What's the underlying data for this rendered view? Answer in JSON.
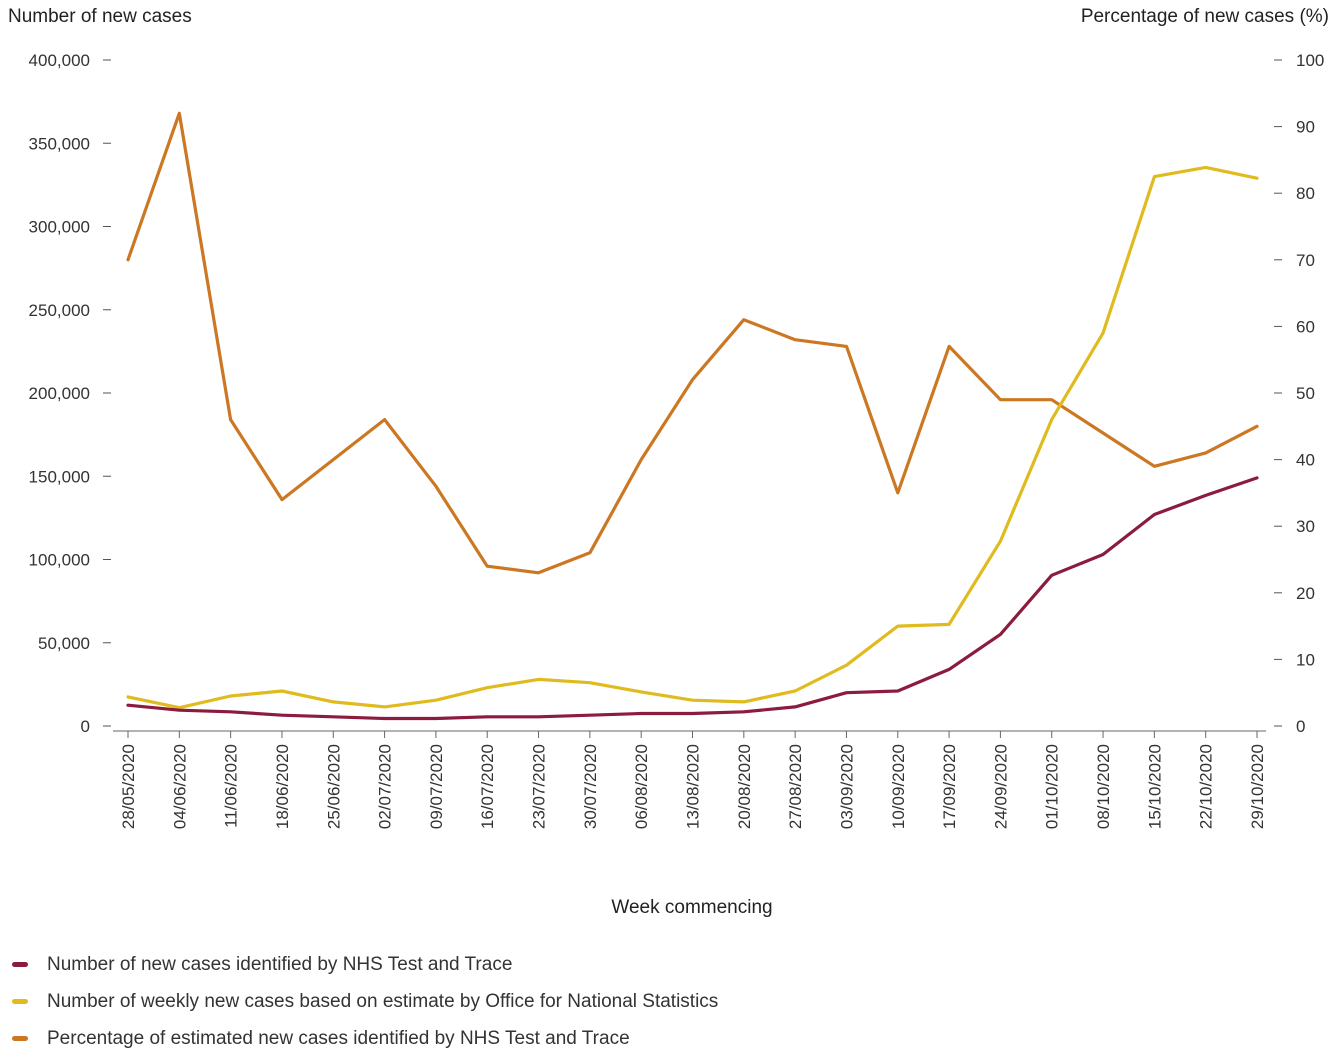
{
  "chart_data": {
    "type": "line",
    "title": "",
    "xlabel": "Week commencing",
    "ylabel_left": "Number of new cases",
    "ylabel_right": "Percentage of new cases (%)",
    "ylim_left": [
      0,
      400000
    ],
    "ylim_right": [
      0,
      100
    ],
    "yticks_left": [
      {
        "value": 0,
        "label": "0"
      },
      {
        "value": 50000,
        "label": "50,000"
      },
      {
        "value": 100000,
        "label": "100,000"
      },
      {
        "value": 150000,
        "label": "150,000"
      },
      {
        "value": 200000,
        "label": "200,000"
      },
      {
        "value": 250000,
        "label": "250,000"
      },
      {
        "value": 300000,
        "label": "300,000"
      },
      {
        "value": 350000,
        "label": "350,000"
      },
      {
        "value": 400000,
        "label": "400,000"
      }
    ],
    "yticks_right": [
      {
        "value": 0,
        "label": "0"
      },
      {
        "value": 10,
        "label": "10"
      },
      {
        "value": 20,
        "label": "20"
      },
      {
        "value": 30,
        "label": "30"
      },
      {
        "value": 40,
        "label": "40"
      },
      {
        "value": 50,
        "label": "50"
      },
      {
        "value": 60,
        "label": "60"
      },
      {
        "value": 70,
        "label": "70"
      },
      {
        "value": 80,
        "label": "80"
      },
      {
        "value": 90,
        "label": "90"
      },
      {
        "value": 100,
        "label": "100"
      }
    ],
    "categories": [
      "28/05/2020",
      "04/06/2020",
      "11/06/2020",
      "18/06/2020",
      "25/06/2020",
      "02/07/2020",
      "09/07/2020",
      "16/07/2020",
      "23/07/2020",
      "30/07/2020",
      "06/08/2020",
      "13/08/2020",
      "20/08/2020",
      "27/08/2020",
      "03/09/2020",
      "10/09/2020",
      "17/09/2020",
      "24/09/2020",
      "01/10/2020",
      "08/10/2020",
      "15/10/2020",
      "22/10/2020",
      "29/10/2020"
    ],
    "grid": false,
    "legend_position": "bottom-left",
    "series": [
      {
        "name": "Number of new cases identified by NHS Test and Trace",
        "axis": "left",
        "color": "#8b1c3e",
        "values": [
          12500,
          9500,
          8500,
          6500,
          5500,
          4500,
          4500,
          5500,
          5500,
          6500,
          7500,
          7500,
          8500,
          11500,
          20000,
          21000,
          34000,
          55000,
          90500,
          103000,
          127000,
          138500,
          149000
        ]
      },
      {
        "name": "Number of weekly new cases based on estimate by Office for National Statistics",
        "axis": "left",
        "color": "#e0bb1f",
        "values": [
          17500,
          11000,
          18000,
          21000,
          14500,
          11500,
          15500,
          23000,
          28000,
          26000,
          20500,
          15500,
          14500,
          21000,
          36500,
          60000,
          61000,
          111000,
          184000,
          236000,
          330000,
          335500,
          329000
        ]
      },
      {
        "name": "Percentage of estimated new cases identified by NHS Test and Trace",
        "axis": "right",
        "color": "#cc7722",
        "values": [
          70,
          92,
          46,
          34,
          40,
          46,
          36,
          24,
          23,
          26,
          40,
          52,
          61,
          58,
          57,
          35,
          57,
          49,
          49,
          44,
          39,
          41,
          45
        ]
      }
    ]
  }
}
